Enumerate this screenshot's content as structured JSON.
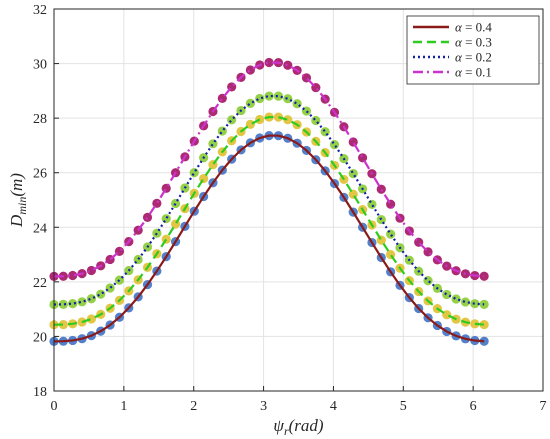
{
  "chart_data": {
    "type": "line",
    "xlabel": "ψr(rad)",
    "ylabel": "Dmin(m)",
    "xlim": [
      0,
      7
    ],
    "ylim": [
      18,
      32
    ],
    "xticks": [
      "0",
      "1",
      "2",
      "3",
      "4",
      "5",
      "6",
      "7"
    ],
    "yticks": [
      "18",
      "20",
      "22",
      "24",
      "26",
      "28",
      "30",
      "32"
    ],
    "grid": true,
    "legend_position": "top-right",
    "x_range": [
      0,
      6.1575
    ],
    "num_points": 47,
    "series": [
      {
        "name": "α = 0.4",
        "label_var": "α",
        "label_value": "= 0.4",
        "line_color": "#8B1A1A",
        "line_style": "solid",
        "marker_color": "#4A79C8",
        "min": 19.82,
        "max": 27.37
      },
      {
        "name": "α = 0.3",
        "label_var": "α",
        "label_value": "= 0.3",
        "line_color": "#2ECC1F",
        "line_style": "dashed",
        "marker_color": "#E0C33A",
        "min": 20.43,
        "max": 28.05
      },
      {
        "name": "α = 0.2",
        "label_var": "α",
        "label_value": "= 0.2",
        "line_color": "#1020A8",
        "line_style": "dotted",
        "marker_color": "#8FCF3C",
        "min": 21.17,
        "max": 28.82
      },
      {
        "name": "α = 0.1",
        "label_var": "α",
        "label_value": "= 0.1",
        "line_color": "#CC33CC",
        "line_style": "dashdot",
        "marker_color": "#A81F6A",
        "min": 22.2,
        "max": 30.05
      }
    ]
  }
}
